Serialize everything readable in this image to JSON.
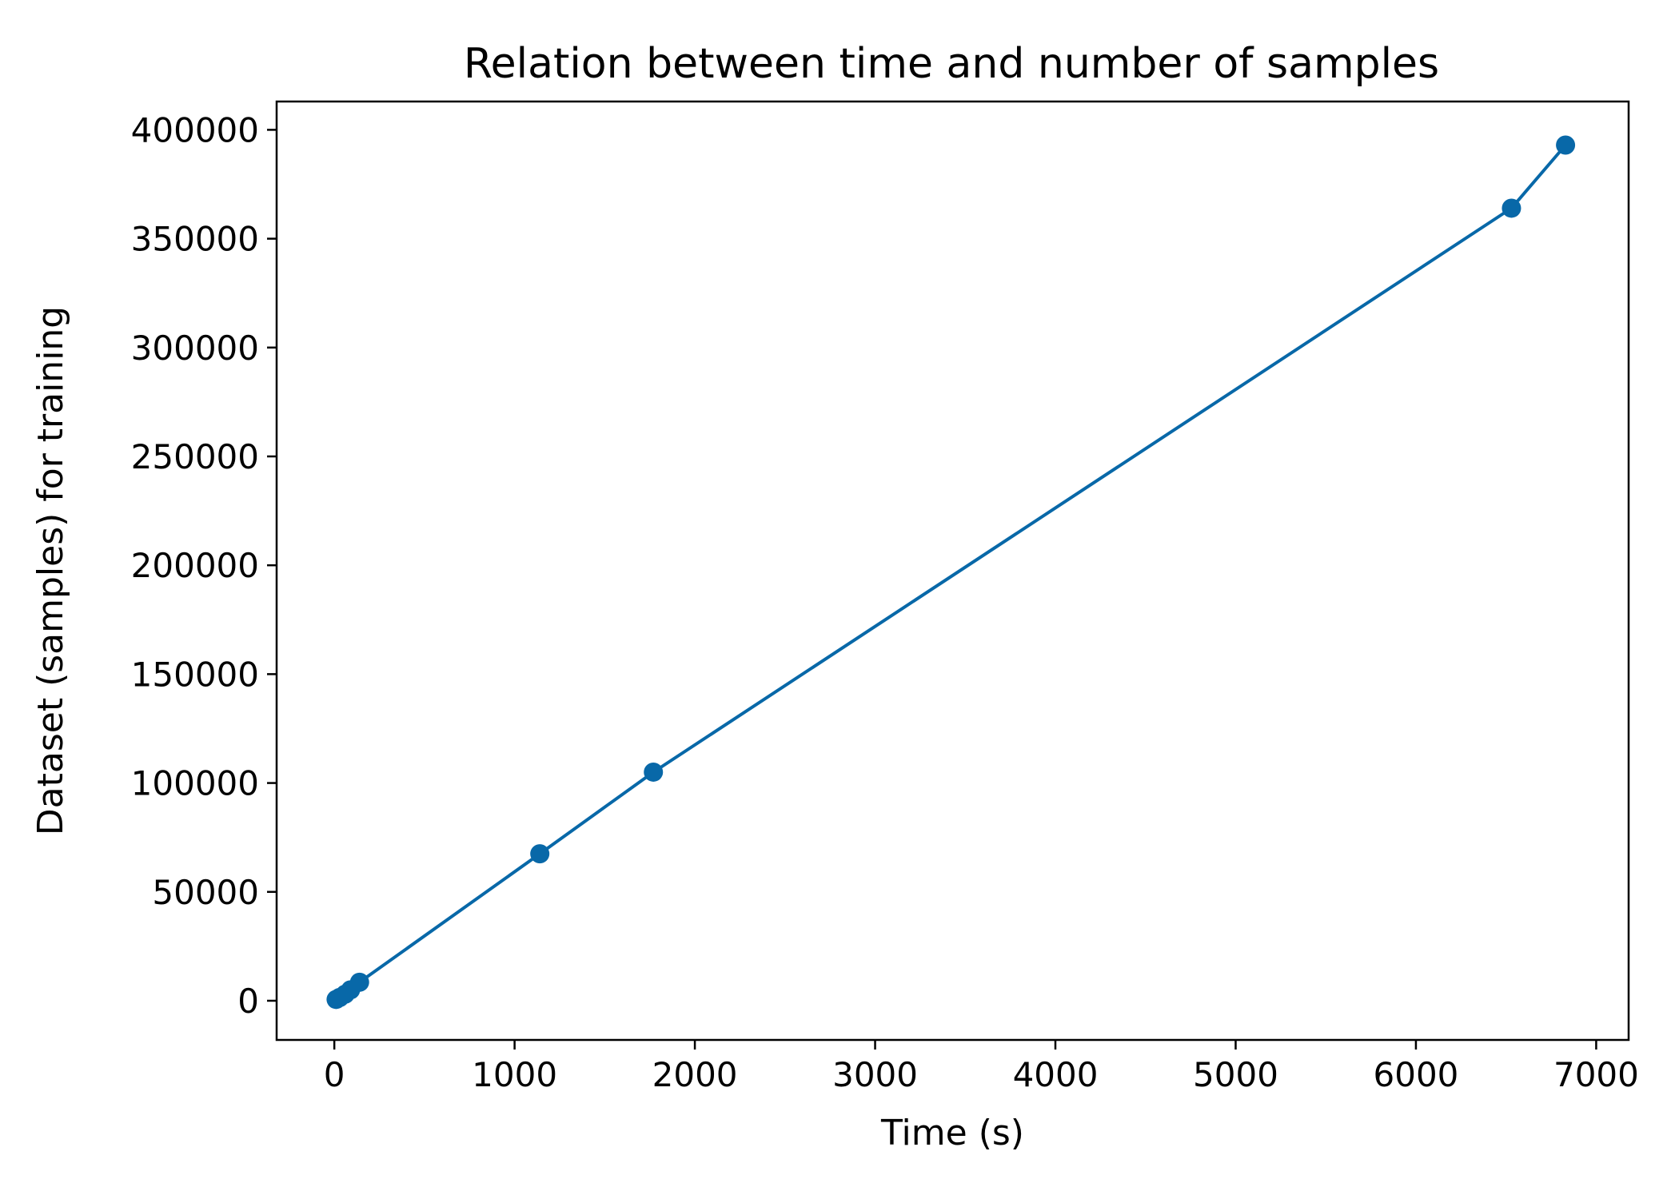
{
  "chart_data": {
    "type": "line",
    "title": "Relation between time and number of samples",
    "xlabel": "Time (s)",
    "ylabel": "Dataset (samples) for training",
    "xlim": [
      -320,
      7180
    ],
    "ylim": [
      -18000,
      413000
    ],
    "xticks": [
      0,
      1000,
      2000,
      3000,
      4000,
      5000,
      6000,
      7000
    ],
    "xtick_labels": [
      "0",
      "1000",
      "2000",
      "3000",
      "4000",
      "5000",
      "6000",
      "7000"
    ],
    "yticks": [
      0,
      50000,
      100000,
      150000,
      200000,
      250000,
      300000,
      350000,
      400000
    ],
    "ytick_labels": [
      "0",
      "50000",
      "100000",
      "150000",
      "200000",
      "250000",
      "300000",
      "350000",
      "400000"
    ],
    "grid": false,
    "series": [
      {
        "color": "#0868a8",
        "marker": "circle",
        "x": [
          10,
          30,
          60,
          90,
          140,
          1140,
          1770,
          6530,
          6830
        ],
        "y": [
          600,
          1500,
          3000,
          5000,
          8500,
          67500,
          105000,
          364000,
          393000
        ]
      }
    ]
  }
}
